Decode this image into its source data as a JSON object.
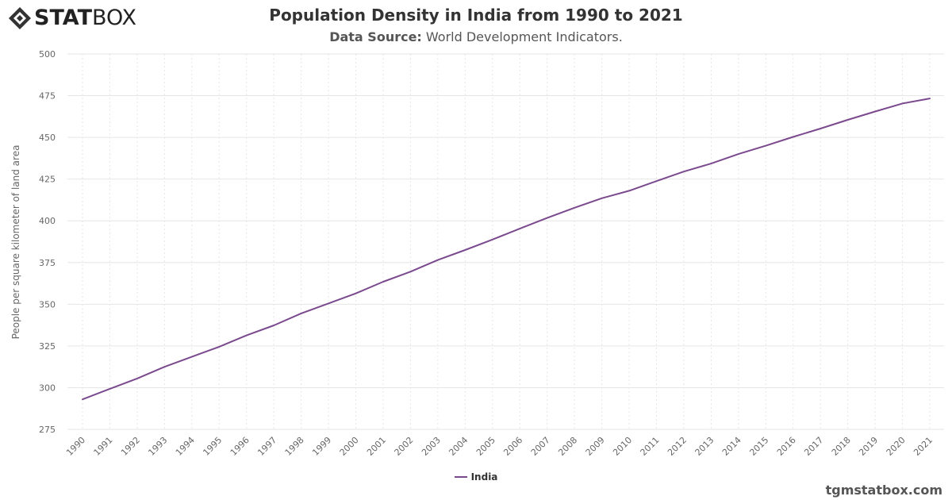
{
  "brand": {
    "logo_bold": "STAT",
    "logo_light": "BOX",
    "website": "tgmstatbox.com"
  },
  "header": {
    "title": "Population Density in India from 1990 to 2021",
    "subtitle_label": "Data Source:",
    "subtitle_value": " World Development Indicators."
  },
  "colors": {
    "series": "#7b4a8e",
    "grid": "#e6e6e6",
    "axis_text": "#666666"
  },
  "chart_data": {
    "type": "line",
    "title": "Population Density in India from 1990 to 2021",
    "ylabel": "People per square kilometer of land area",
    "xlabel": "",
    "ylim": [
      275,
      500
    ],
    "yticks": [
      275,
      300,
      325,
      350,
      375,
      400,
      425,
      450,
      475,
      500
    ],
    "grid": true,
    "legend_position": "bottom-center",
    "x": [
      "1990",
      "1991",
      "1992",
      "1993",
      "1994",
      "1995",
      "1996",
      "1997",
      "1998",
      "1999",
      "2000",
      "2001",
      "2002",
      "2003",
      "2004",
      "2005",
      "2006",
      "2007",
      "2008",
      "2009",
      "2010",
      "2011",
      "2012",
      "2013",
      "2014",
      "2015",
      "2016",
      "2017",
      "2018",
      "2019",
      "2020",
      "2021"
    ],
    "series": [
      {
        "name": "India",
        "values": [
          293.0,
          299.3,
          305.5,
          312.5,
          318.5,
          324.5,
          331.3,
          337.3,
          344.5,
          350.5,
          356.5,
          363.5,
          369.5,
          376.5,
          382.5,
          388.8,
          395.3,
          401.7,
          407.8,
          413.5,
          418.0,
          423.8,
          429.5,
          434.3,
          440.0,
          445.0,
          450.3,
          455.3,
          460.5,
          465.5,
          470.3,
          473.3
        ]
      }
    ]
  }
}
